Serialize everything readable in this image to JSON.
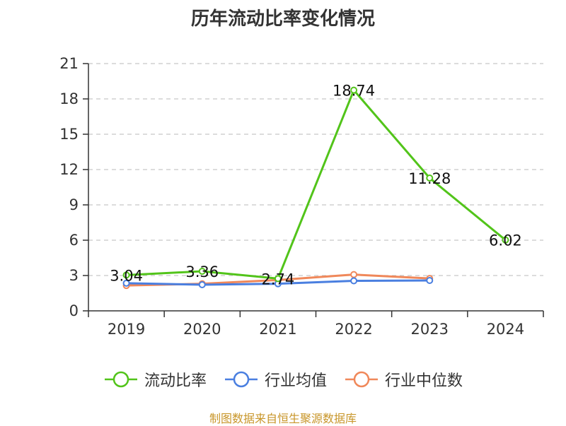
{
  "chart_data": {
    "type": "line",
    "title": "历年流动比率变化情况",
    "categories": [
      "2019",
      "2020",
      "2021",
      "2022",
      "2023",
      "2024"
    ],
    "y_ticks": [
      0,
      3,
      6,
      9,
      12,
      15,
      18,
      21
    ],
    "ylim": [
      0,
      21
    ],
    "grid": true,
    "legend_position": "bottom",
    "series": [
      {
        "name": "流动比率",
        "color": "#52c41a",
        "values": [
          3.04,
          3.36,
          2.74,
          18.74,
          11.28,
          6.02
        ],
        "labels": [
          "3.04",
          "3.36",
          "2.74",
          "18.74",
          "11.28",
          "6.02"
        ]
      },
      {
        "name": "行业均值",
        "color": "#4a7fe0",
        "values": [
          2.35,
          2.22,
          2.3,
          2.55,
          2.58,
          null
        ]
      },
      {
        "name": "行业中位数",
        "color": "#f0885a",
        "values": [
          2.15,
          2.3,
          2.62,
          3.08,
          2.75,
          null
        ]
      }
    ]
  },
  "footer": {
    "source": "制图数据来自恒生聚源数据库"
  }
}
